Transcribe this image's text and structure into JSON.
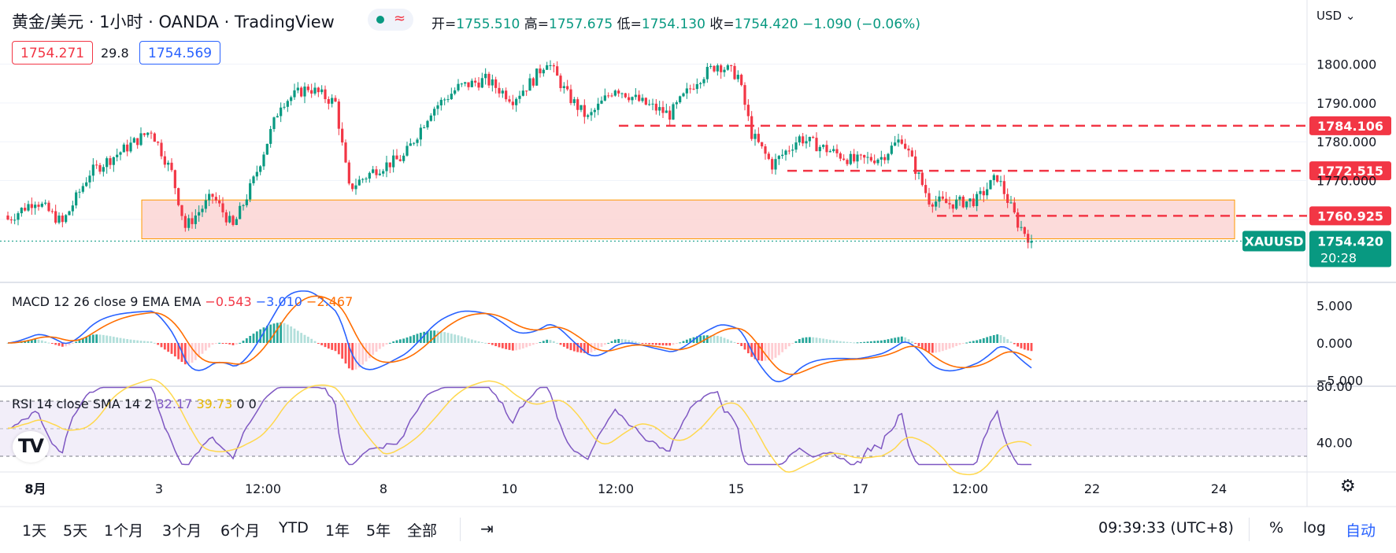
{
  "header": {
    "symbol_title": "黄金/美元 · 1小时 · OANDA · TradingView",
    "ohlc": {
      "open_label": "开",
      "open": "1755.510",
      "high_label": "高",
      "high": "1757.675",
      "low_label": "低",
      "low": "1754.130",
      "close_label": "收",
      "close": "1754.420",
      "change": "−1.090 (−0.06%)"
    },
    "bid": "1754.271",
    "spread": "29.8",
    "ask": "1754.569",
    "currency": "USD"
  },
  "price_axis": {
    "ticks": [
      "1800.000",
      "1790.000",
      "1780.000",
      "1770.000"
    ],
    "levels": [
      {
        "value": "1784.106"
      },
      {
        "value": "1772.515"
      },
      {
        "value": "1760.925"
      }
    ],
    "symbol_tag": "XAUUSD",
    "last_price": "1754.420",
    "countdown": "20:28"
  },
  "macd": {
    "label": "MACD 12 26 close 9 EMA EMA",
    "hist": "−0.543",
    "macd": "−3.010",
    "signal": "−2.467",
    "ticks": [
      "5.000",
      "0.000",
      "−5.000"
    ]
  },
  "rsi": {
    "label": "RSI 14 close SMA 14 2",
    "rsi": "32.17",
    "sma": "39.73",
    "a": "0",
    "b": "0",
    "ticks": [
      "80.00",
      "40.00"
    ]
  },
  "time_axis": [
    "8月",
    "3",
    "12:00",
    "8",
    "10",
    "12:00",
    "15",
    "17",
    "12:00",
    "22",
    "24"
  ],
  "bottom_bar": {
    "timeframes": [
      "1天",
      "5天",
      "1个月",
      "3个月",
      "6个月",
      "YTD",
      "1年",
      "5年",
      "全部"
    ],
    "clock": "09:39:33 (UTC+8)",
    "percent": "%",
    "log": "log",
    "auto": "自动"
  },
  "colors": {
    "up": "#089981",
    "down": "#f23645",
    "blue": "#2962ff",
    "orange": "#ff6d00",
    "rsi_line": "#7e57c2",
    "rsi_sma": "#ffd84d",
    "zone_fill": "#fcd5d3",
    "zone_border": "#ff9800"
  },
  "chart_data": {
    "type": "candlestick",
    "timeframe": "1小时",
    "price_range": [
      1746,
      1808
    ],
    "support_zone": [
      1755,
      1765
    ],
    "levels": [
      1784.106,
      1772.515,
      1760.925
    ],
    "close_path": [
      {
        "i": 0,
        "p": 1760
      },
      {
        "i": 8,
        "p": 1765
      },
      {
        "i": 16,
        "p": 1759
      },
      {
        "i": 24,
        "p": 1772
      },
      {
        "i": 34,
        "p": 1778
      },
      {
        "i": 42,
        "p": 1783
      },
      {
        "i": 48,
        "p": 1772
      },
      {
        "i": 52,
        "p": 1758
      },
      {
        "i": 60,
        "p": 1766
      },
      {
        "i": 66,
        "p": 1758
      },
      {
        "i": 72,
        "p": 1770
      },
      {
        "i": 80,
        "p": 1790
      },
      {
        "i": 88,
        "p": 1794
      },
      {
        "i": 96,
        "p": 1790
      },
      {
        "i": 100,
        "p": 1768
      },
      {
        "i": 108,
        "p": 1773
      },
      {
        "i": 116,
        "p": 1776
      },
      {
        "i": 124,
        "p": 1788
      },
      {
        "i": 132,
        "p": 1794
      },
      {
        "i": 140,
        "p": 1796
      },
      {
        "i": 148,
        "p": 1791
      },
      {
        "i": 154,
        "p": 1796
      },
      {
        "i": 158,
        "p": 1801
      },
      {
        "i": 164,
        "p": 1792
      },
      {
        "i": 170,
        "p": 1786
      },
      {
        "i": 178,
        "p": 1794
      },
      {
        "i": 186,
        "p": 1790
      },
      {
        "i": 194,
        "p": 1787
      },
      {
        "i": 202,
        "p": 1796
      },
      {
        "i": 208,
        "p": 1800
      },
      {
        "i": 214,
        "p": 1797
      },
      {
        "i": 218,
        "p": 1782
      },
      {
        "i": 224,
        "p": 1774
      },
      {
        "i": 232,
        "p": 1781
      },
      {
        "i": 240,
        "p": 1778
      },
      {
        "i": 248,
        "p": 1775
      },
      {
        "i": 256,
        "p": 1776
      },
      {
        "i": 262,
        "p": 1781
      },
      {
        "i": 270,
        "p": 1765
      },
      {
        "i": 276,
        "p": 1764
      },
      {
        "i": 284,
        "p": 1765
      },
      {
        "i": 290,
        "p": 1771
      },
      {
        "i": 296,
        "p": 1759
      },
      {
        "i": 300,
        "p": 1754.42
      }
    ],
    "last": 1754.42
  }
}
